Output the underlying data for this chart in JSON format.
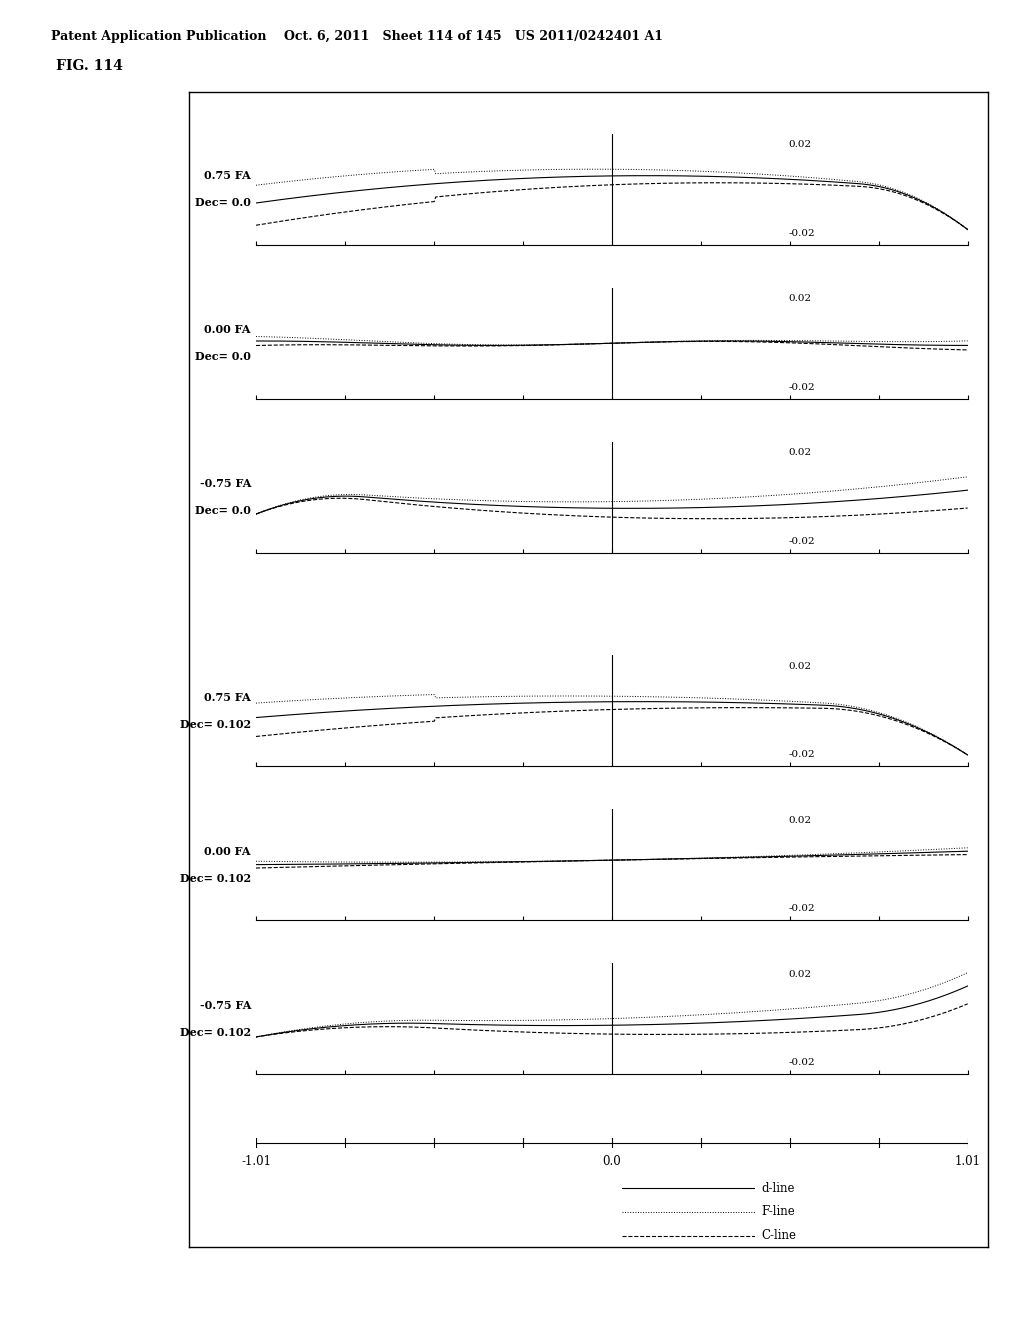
{
  "header_text": "Patent Application Publication    Oct. 6, 2011   Sheet 114 of 145   US 2011/0242401 A1",
  "fig_label": "FIG. 114",
  "subplots": [
    {
      "label_line1": "0.75 FA",
      "label_line2": "Dec= 0.0",
      "fa": 0.75,
      "dec": 0.0
    },
    {
      "label_line1": "0.00 FA",
      "label_line2": "Dec= 0.0",
      "fa": 0.0,
      "dec": 0.0
    },
    {
      "label_line1": "-0.75 FA",
      "label_line2": "Dec= 0.0",
      "fa": -0.75,
      "dec": 0.0
    },
    {
      "label_line1": "0.75 FA",
      "label_line2": "Dec= 0.102",
      "fa": 0.75,
      "dec": 0.102
    },
    {
      "label_line1": "0.00 FA",
      "label_line2": "Dec= 0.102",
      "fa": 0.0,
      "dec": 0.102
    },
    {
      "label_line1": "-0.75 FA",
      "label_line2": "Dec= 0.102",
      "fa": -0.75,
      "dec": 0.102
    }
  ],
  "x_range": [
    -1.01,
    1.01
  ],
  "y_range": [
    -0.02,
    0.02
  ],
  "legend": [
    "d-line",
    "F-line",
    "C-line"
  ],
  "background": "#ffffff"
}
